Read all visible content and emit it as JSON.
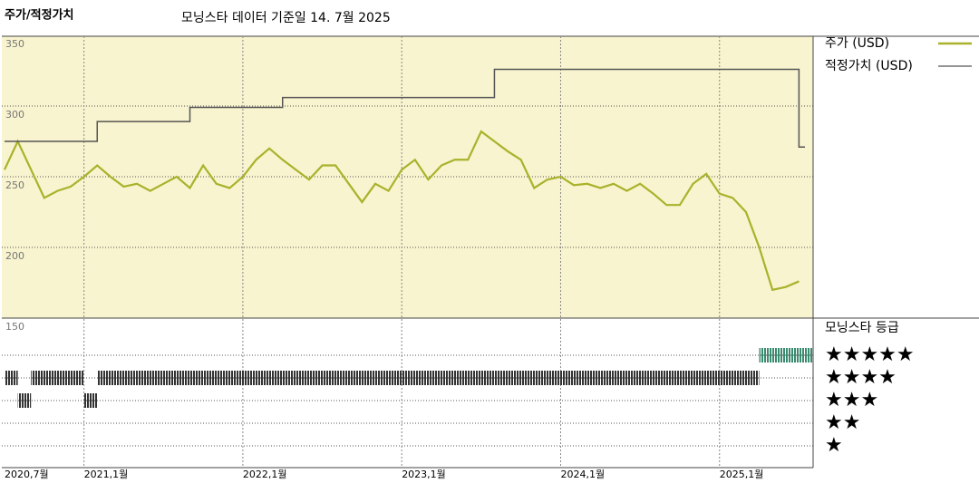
{
  "chart_data": {
    "type": "line",
    "title": "주가/적정가치",
    "subtitle": "모닝스타 데이터 기준일 14. 7월 2025",
    "x": [
      "2020-07",
      "2020-08",
      "2020-09",
      "2020-10",
      "2020-11",
      "2020-12",
      "2021-01",
      "2021-02",
      "2021-03",
      "2021-04",
      "2021-05",
      "2021-06",
      "2021-07",
      "2021-08",
      "2021-09",
      "2021-10",
      "2021-11",
      "2021-12",
      "2022-01",
      "2022-02",
      "2022-03",
      "2022-04",
      "2022-05",
      "2022-06",
      "2022-07",
      "2022-08",
      "2022-09",
      "2022-10",
      "2022-11",
      "2022-12",
      "2023-01",
      "2023-02",
      "2023-03",
      "2023-04",
      "2023-05",
      "2023-06",
      "2023-07",
      "2023-08",
      "2023-09",
      "2023-10",
      "2023-11",
      "2023-12",
      "2024-01",
      "2024-02",
      "2024-03",
      "2024-04",
      "2024-05",
      "2024-06",
      "2024-07",
      "2024-08",
      "2024-09",
      "2024-10",
      "2024-11",
      "2024-12",
      "2025-01",
      "2025-02",
      "2025-03",
      "2025-04",
      "2025-05",
      "2025-06",
      "2025-07"
    ],
    "series": [
      {
        "name": "주가 (USD)",
        "color": "#a9b22b",
        "values": [
          255,
          275,
          255,
          235,
          240,
          243,
          250,
          258,
          250,
          243,
          245,
          240,
          245,
          250,
          242,
          258,
          245,
          242,
          250,
          262,
          270,
          262,
          255,
          248,
          258,
          258,
          245,
          232,
          245,
          240,
          255,
          262,
          248,
          258,
          262,
          262,
          282,
          275,
          268,
          262,
          242,
          248,
          250,
          244,
          245,
          242,
          245,
          240,
          245,
          238,
          230,
          230,
          245,
          252,
          238,
          235,
          225,
          200,
          170,
          172,
          176
        ]
      },
      {
        "name": "적정가치 (USD)",
        "color": "#555555",
        "step": true,
        "values": [
          275,
          275,
          275,
          275,
          275,
          275,
          275,
          289,
          289,
          289,
          289,
          289,
          289,
          289,
          299,
          299,
          299,
          299,
          299,
          299,
          299,
          306,
          306,
          306,
          306,
          306,
          306,
          306,
          306,
          306,
          306,
          306,
          306,
          306,
          306,
          306,
          306,
          326,
          326,
          326,
          326,
          326,
          326,
          326,
          326,
          326,
          326,
          326,
          326,
          326,
          326,
          326,
          326,
          326,
          326,
          326,
          326,
          326,
          326,
          326,
          271
        ]
      }
    ],
    "xlim": [
      "2020-07",
      "2025-08"
    ],
    "xticks": [
      {
        "value": "2020-07",
        "label": "2020,7월"
      },
      {
        "value": "2021-01",
        "label": "2021,1월"
      },
      {
        "value": "2022-01",
        "label": "2022,1월"
      },
      {
        "value": "2023-01",
        "label": "2023,1월"
      },
      {
        "value": "2024-01",
        "label": "2024,1월"
      },
      {
        "value": "2025-01",
        "label": "2025,1월"
      }
    ],
    "ylim": [
      150,
      350
    ],
    "yticks": [
      150,
      200,
      250,
      300,
      350
    ],
    "grid": true,
    "rating_title": "모닝스타 등급",
    "rating_levels": [
      {
        "stars": 5,
        "label": "★★★★★"
      },
      {
        "stars": 4,
        "label": "★★★★"
      },
      {
        "stars": 3,
        "label": "★★★"
      },
      {
        "stars": 2,
        "label": "★★"
      },
      {
        "stars": 1,
        "label": "★"
      }
    ],
    "ratings": [
      {
        "from": "2020-07",
        "to": "2020-08",
        "stars": 4,
        "color": "#333333"
      },
      {
        "from": "2020-08",
        "to": "2020-09",
        "stars": 3,
        "color": "#333333"
      },
      {
        "from": "2020-09",
        "to": "2021-01",
        "stars": 4,
        "color": "#333333"
      },
      {
        "from": "2021-01",
        "to": "2021-02",
        "stars": 3,
        "color": "#333333"
      },
      {
        "from": "2021-02",
        "to": "2025-04",
        "stars": 4,
        "color": "#333333"
      },
      {
        "from": "2025-04",
        "to": "2025-08",
        "stars": 5,
        "color": "#3a8a6e"
      }
    ]
  }
}
